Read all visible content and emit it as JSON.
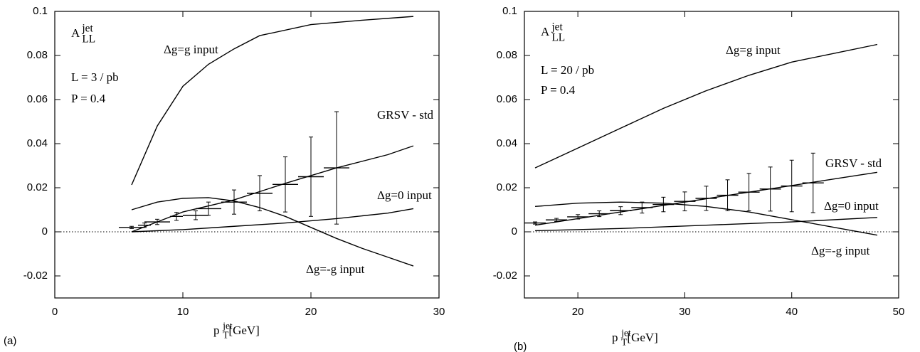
{
  "chart_data": [
    {
      "type": "line",
      "panel_label": "(a)",
      "y_title": {
        "base": "A",
        "sub": "LL",
        "sup": "jet"
      },
      "annotations": [
        "L = 3 / pb",
        "P = 0.4"
      ],
      "x_label": {
        "base": "p",
        "sub": "T",
        "sup": "jet",
        "rest": "[GeV]"
      },
      "xlim": [
        0,
        30
      ],
      "xticks": [
        0,
        10,
        20,
        30
      ],
      "ylim": [
        -0.03,
        0.1
      ],
      "yticks": [
        -0.02,
        0,
        0.02,
        0.04,
        0.06,
        0.08,
        0.1
      ],
      "series": [
        {
          "name": "Δg=g input",
          "color": "#000000",
          "x": [
            6,
            8,
            10,
            12,
            14,
            16,
            20,
            24,
            28
          ],
          "values": [
            0.0213,
            0.048,
            0.066,
            0.076,
            0.083,
            0.089,
            0.094,
            0.096,
            0.0977
          ]
        },
        {
          "name": "GRSV - std",
          "color": "#000000",
          "x": [
            6,
            10,
            14,
            18,
            22,
            26,
            28
          ],
          "values": [
            0.0,
            0.009,
            0.0145,
            0.022,
            0.029,
            0.035,
            0.039
          ]
        },
        {
          "name": "Δg=0 input",
          "color": "#000000",
          "x": [
            6,
            10,
            14,
            18,
            22,
            26,
            28
          ],
          "values": [
            0.0,
            0.001,
            0.0025,
            0.004,
            0.006,
            0.0085,
            0.0105
          ]
        },
        {
          "name": "Δg=-g input",
          "color": "#000000",
          "x": [
            6,
            8,
            10,
            12,
            14,
            16,
            18,
            20,
            22,
            24,
            26,
            28
          ],
          "values": [
            0.01,
            0.0135,
            0.0152,
            0.0155,
            0.014,
            0.011,
            0.007,
            0.002,
            -0.003,
            -0.0075,
            -0.0115,
            -0.0155
          ]
        }
      ],
      "errors": {
        "x": [
          6,
          7,
          8,
          9.5,
          11,
          12,
          14,
          16,
          18,
          20,
          22
        ],
        "values": [
          0.002,
          0.003,
          0.0045,
          0.007,
          0.0075,
          0.0105,
          0.0135,
          0.0175,
          0.0215,
          0.025,
          0.029
        ],
        "yerr": [
          0.0005,
          0.001,
          0.0012,
          0.0018,
          0.002,
          0.003,
          0.0055,
          0.008,
          0.0125,
          0.018,
          0.0255
        ],
        "xerr": [
          1,
          0.5,
          1,
          0.5,
          1,
          1,
          1,
          1,
          1,
          1,
          1
        ]
      }
    },
    {
      "type": "line",
      "panel_label": "(b)",
      "y_title": {
        "base": "A",
        "sub": "LL",
        "sup": "jet"
      },
      "annotations": [
        "L = 20 / pb",
        "P = 0.4"
      ],
      "x_label": {
        "base": "p",
        "sub": "T",
        "sup": "jet",
        "rest": "[GeV]"
      },
      "xlim": [
        15,
        50
      ],
      "xticks": [
        20,
        30,
        40,
        50
      ],
      "ylim": [
        -0.03,
        0.1
      ],
      "yticks": [
        -0.02,
        0,
        0.02,
        0.04,
        0.06,
        0.08,
        0.1
      ],
      "series": [
        {
          "name": "Δg=g input",
          "color": "#000000",
          "x": [
            16,
            20,
            24,
            28,
            32,
            36,
            40,
            44,
            48
          ],
          "values": [
            0.029,
            0.038,
            0.047,
            0.056,
            0.064,
            0.071,
            0.077,
            0.081,
            0.085
          ]
        },
        {
          "name": "GRSV - std",
          "color": "#000000",
          "x": [
            16,
            20,
            24,
            28,
            32,
            36,
            40,
            44,
            48
          ],
          "values": [
            0.003,
            0.006,
            0.009,
            0.012,
            0.015,
            0.018,
            0.021,
            0.024,
            0.027
          ]
        },
        {
          "name": "Δg=0 input",
          "color": "#000000",
          "x": [
            16,
            24,
            32,
            40,
            48
          ],
          "values": [
            0.0005,
            0.0015,
            0.003,
            0.0045,
            0.0065
          ]
        },
        {
          "name": "Δg=-g input",
          "color": "#000000",
          "x": [
            16,
            20,
            24,
            28,
            32,
            36,
            40,
            44,
            48
          ],
          "values": [
            0.0115,
            0.013,
            0.0135,
            0.013,
            0.0115,
            0.009,
            0.0055,
            0.002,
            -0.0015
          ]
        }
      ],
      "errors": {
        "x": [
          16,
          18,
          20,
          22,
          24,
          26,
          28,
          30,
          32,
          34,
          36,
          38,
          40,
          42
        ],
        "values": [
          0.004,
          0.0054,
          0.0068,
          0.0082,
          0.0096,
          0.011,
          0.0124,
          0.0138,
          0.0152,
          0.0166,
          0.018,
          0.0194,
          0.0208,
          0.0222
        ],
        "yerr": [
          0.0005,
          0.0007,
          0.001,
          0.0013,
          0.0018,
          0.0025,
          0.0033,
          0.0043,
          0.0055,
          0.007,
          0.0085,
          0.01,
          0.0117,
          0.0135
        ],
        "xerr": [
          1,
          1,
          1,
          1,
          1,
          1,
          1,
          1,
          1,
          1,
          1,
          1,
          1,
          1
        ]
      }
    }
  ]
}
